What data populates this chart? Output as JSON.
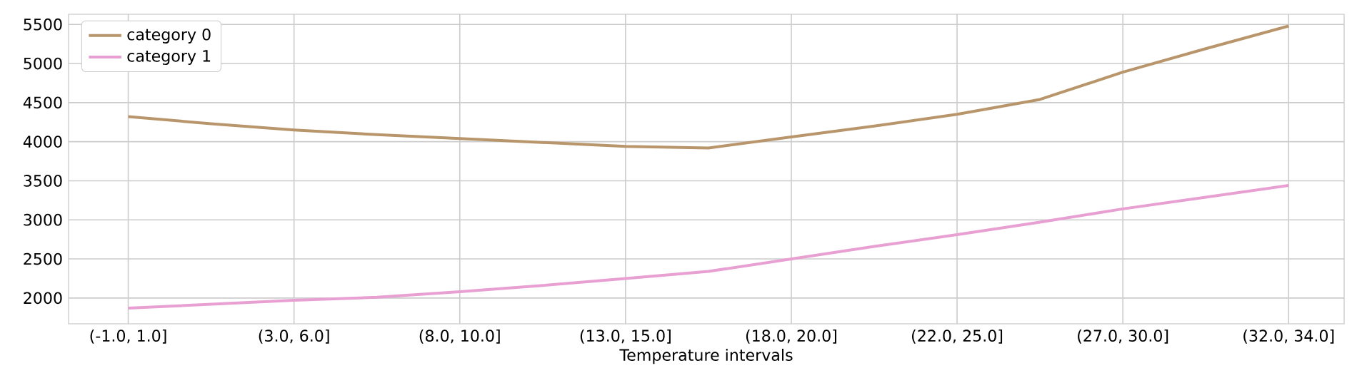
{
  "chart_data": {
    "type": "line",
    "xlabel": "Temperature intervals",
    "categories": [
      "(-1.0, 1.0]",
      null,
      "(3.0, 6.0]",
      null,
      "(8.0, 10.0]",
      null,
      "(13.0, 15.0]",
      null,
      "(18.0, 20.0]",
      null,
      "(22.0, 25.0]",
      null,
      "(27.0, 30.0]",
      null,
      "(32.0, 34.0]"
    ],
    "series": [
      {
        "name": "category 0",
        "color": "#b8956a",
        "values": [
          4320,
          4230,
          4150,
          4090,
          4040,
          3990,
          3940,
          3920,
          4060,
          4200,
          4350,
          4540,
          4890,
          5190,
          5480
        ]
      },
      {
        "name": "category 1",
        "color": "#e8a0d2",
        "values": [
          1870,
          1920,
          1970,
          2010,
          2080,
          2160,
          2250,
          2340,
          2500,
          2660,
          2810,
          2970,
          3140,
          3290,
          3440
        ]
      }
    ],
    "ylim": [
      1670,
      5630
    ],
    "yticks": [
      2000,
      2500,
      3000,
      3500,
      4000,
      4500,
      5000,
      5500
    ],
    "grid": true,
    "legend": "top left"
  }
}
